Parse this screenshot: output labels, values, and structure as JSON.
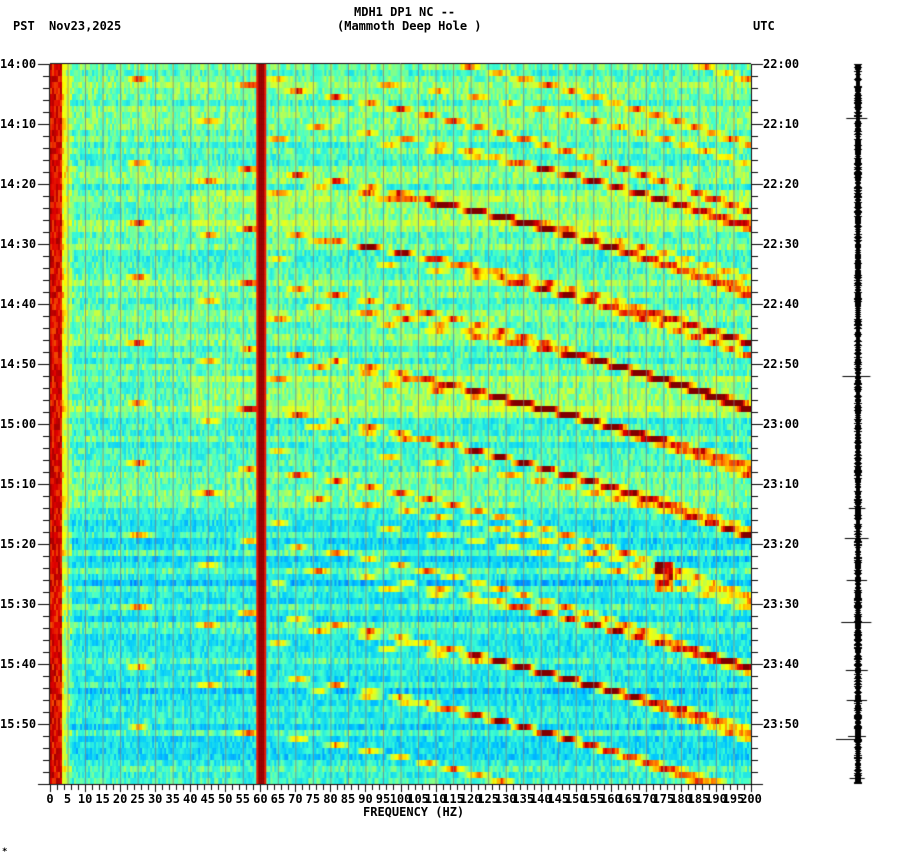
{
  "header": {
    "timezone_left": "PST",
    "date": "Nov23,2025",
    "station_line": "MDH1 DP1 NC --",
    "station_name": "(Mammoth Deep Hole )",
    "timezone_right": "UTC"
  },
  "footer": {
    "mark": "*"
  },
  "chart_data": {
    "type": "heatmap",
    "title": "MDH1 DP1 NC -- (Mammoth Deep Hole )",
    "xlabel": "FREQUENCY (HZ)",
    "ylabel_left": "PST",
    "ylabel_right": "UTC",
    "x_range": [
      0,
      200
    ],
    "x_ticks": [
      "0",
      "5",
      "10",
      "15",
      "20",
      "25",
      "30",
      "35",
      "40",
      "45",
      "50",
      "55",
      "60",
      "65",
      "70",
      "75",
      "80",
      "85",
      "90",
      "95",
      "100",
      "105",
      "110",
      "115",
      "120",
      "125",
      "130",
      "135",
      "140",
      "145",
      "150",
      "155",
      "160",
      "165",
      "170",
      "175",
      "180",
      "185",
      "190",
      "195",
      "200"
    ],
    "y_ticks_left": [
      "14:00",
      "14:10",
      "14:20",
      "14:30",
      "14:40",
      "14:50",
      "15:00",
      "15:10",
      "15:20",
      "15:30",
      "15:40",
      "15:50"
    ],
    "y_ticks_right": [
      "22:00",
      "22:10",
      "22:20",
      "22:30",
      "22:40",
      "22:50",
      "23:00",
      "23:10",
      "23:20",
      "23:30",
      "23:40",
      "23:50"
    ],
    "time_span_minutes": 120,
    "colormap": [
      "#00008b",
      "#0050ff",
      "#00c8ff",
      "#40ffd0",
      "#c8ff40",
      "#ffff00",
      "#ff8000",
      "#e00000",
      "#800000"
    ],
    "features": {
      "power_line_hz": 60,
      "low_freq_band_hz": [
        0,
        3
      ],
      "gray_grid_lines_every_hz": 5,
      "sweep_events_start_minutes": [
        2,
        16,
        26,
        35,
        46,
        56,
        66,
        78,
        90,
        100,
        110
      ],
      "transient_at": {
        "freq_hz": 175,
        "minute": 85
      },
      "quiet_band_minutes": [
        75,
        120
      ]
    }
  },
  "seismogram": {
    "x": 858,
    "spikes_minutes": [
      9,
      52,
      74,
      79,
      86,
      93,
      101,
      106,
      112,
      119
    ]
  }
}
